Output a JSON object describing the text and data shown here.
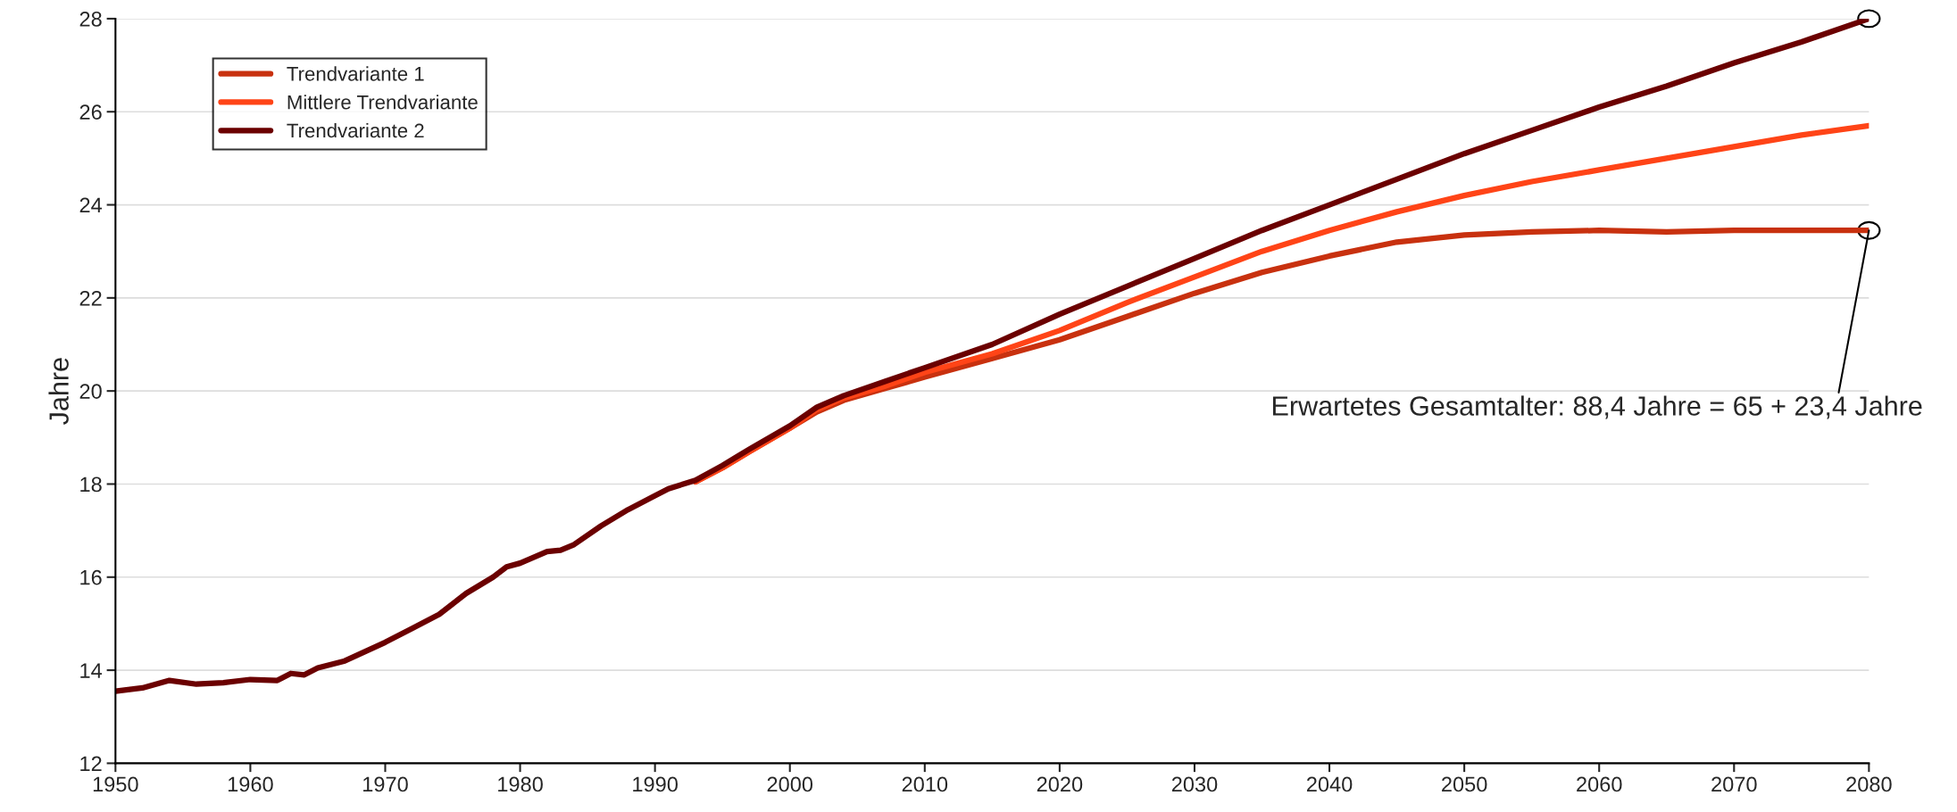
{
  "chart_data": {
    "type": "line",
    "ylabel": "Jahre",
    "x": [
      1950,
      1952,
      1954,
      1956,
      1958,
      1960,
      1962,
      1963,
      1964,
      1965,
      1967,
      1970,
      1972,
      1974,
      1976,
      1978,
      1979,
      1980,
      1982,
      1983,
      1984,
      1986,
      1988,
      1990,
      1991,
      1993,
      1995,
      1997,
      2000,
      2002,
      2004,
      2007,
      2010,
      2015,
      2020,
      2025,
      2030,
      2035,
      2040,
      2045,
      2050,
      2055,
      2060,
      2065,
      2070,
      2075,
      2080
    ],
    "series": [
      {
        "name": "Trendvariante 1",
        "color": "#c8310f",
        "x": [
          1993,
          1995,
          1997,
          2000,
          2002,
          2004,
          2007,
          2010,
          2015,
          2020,
          2025,
          2030,
          2035,
          2040,
          2045,
          2050,
          2055,
          2060,
          2065,
          2070,
          2075,
          2080
        ],
        "values": [
          18.05,
          18.35,
          18.7,
          19.2,
          19.55,
          19.8,
          20.05,
          20.3,
          20.7,
          21.1,
          21.6,
          22.1,
          22.55,
          22.9,
          23.2,
          23.35,
          23.42,
          23.45,
          23.42,
          23.45,
          23.45,
          23.45
        ]
      },
      {
        "name": "Mittlere Trendvariante",
        "color": "#ff4417",
        "x": [
          1993,
          1995,
          1997,
          2000,
          2002,
          2004,
          2007,
          2010,
          2015,
          2020,
          2025,
          2030,
          2035,
          2040,
          2045,
          2050,
          2055,
          2060,
          2065,
          2070,
          2075,
          2080
        ],
        "values": [
          18.05,
          18.35,
          18.7,
          19.2,
          19.6,
          19.85,
          20.1,
          20.4,
          20.8,
          21.3,
          21.9,
          22.45,
          23.0,
          23.45,
          23.85,
          24.2,
          24.5,
          24.75,
          25.0,
          25.25,
          25.5,
          25.7
        ]
      },
      {
        "name": "Trendvariante 2",
        "color": "#6b0000",
        "values": [
          13.55,
          13.62,
          13.78,
          13.7,
          13.73,
          13.8,
          13.78,
          13.93,
          13.9,
          14.05,
          14.2,
          14.6,
          14.9,
          15.2,
          15.65,
          16.0,
          16.22,
          16.3,
          16.55,
          16.58,
          16.7,
          17.1,
          17.45,
          17.75,
          17.9,
          18.08,
          18.4,
          18.75,
          19.25,
          19.65,
          19.9,
          20.2,
          20.5,
          21.0,
          21.65,
          22.25,
          22.85,
          23.45,
          24.0,
          24.55,
          25.1,
          25.6,
          26.1,
          26.55,
          27.05,
          27.5,
          28.0
        ]
      }
    ],
    "xlim": [
      1950,
      2080
    ],
    "xticks": [
      1950,
      1960,
      1970,
      1980,
      1990,
      2000,
      2010,
      2020,
      2030,
      2040,
      2050,
      2060,
      2070,
      2080
    ],
    "ylim": [
      12,
      28
    ],
    "yticks": [
      12,
      14,
      16,
      18,
      20,
      22,
      24,
      26,
      28
    ],
    "grid": "y",
    "legend": "top left",
    "marker": "none",
    "line_style": "solid",
    "annotations": [
      {
        "text": "Erwartetes Gesamtalter: 88,4 Jahre = 65 + 23,4 Jahre",
        "x": 2080,
        "y": 23.45
      }
    ]
  }
}
